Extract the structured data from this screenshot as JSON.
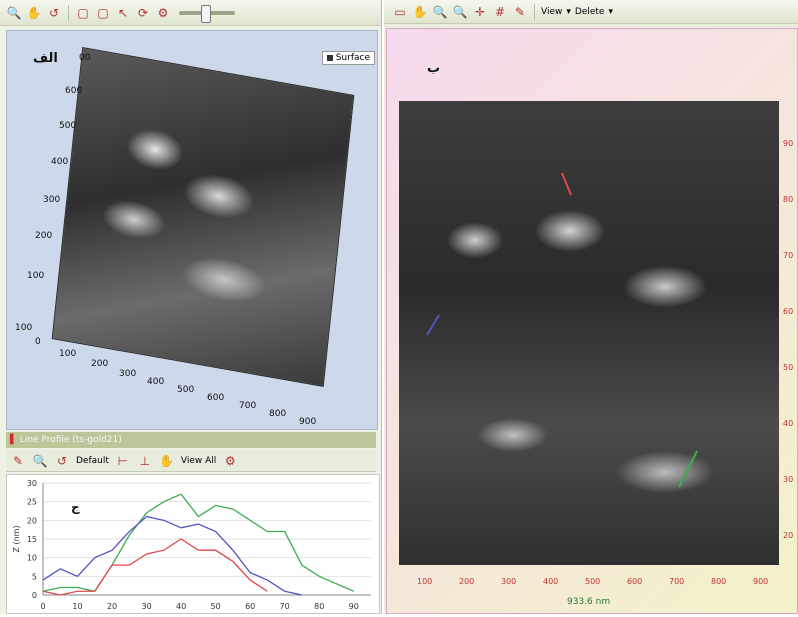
{
  "left": {
    "toolbar": {
      "icons": [
        "zoom-icon",
        "hand-icon",
        "reset-icon",
        "frame-icon",
        "frame2-icon",
        "pointer-icon",
        "rotate-icon",
        "options-icon",
        "slider-icon"
      ]
    },
    "view3d": {
      "overlay_label": "الف",
      "legend_label": "Surface",
      "y_ticks": [
        "600",
        "500",
        "400",
        "300",
        "200",
        "100",
        "100"
      ],
      "x_ticks": [
        "0",
        "100",
        "200",
        "300",
        "400",
        "500",
        "600",
        "700",
        "800",
        "900"
      ],
      "top_tick": "00"
    },
    "profile": {
      "title": "Line Profile (ts-gold21)",
      "toolbar": {
        "default_label": "Default",
        "viewall_label": "View All"
      }
    }
  },
  "right": {
    "toolbar": {
      "view_label": "View",
      "delete_label": "Delete"
    },
    "overlay_label": "ب",
    "x_ticks": [
      "100",
      "200",
      "300",
      "400",
      "500",
      "600",
      "700",
      "800",
      "900"
    ],
    "y_ticks": [
      "90",
      "80",
      "70",
      "60",
      "50",
      "40",
      "30",
      "20"
    ],
    "scale_label": "933.6 nm"
  },
  "chart_data": {
    "type": "line",
    "overlay_label": "ج",
    "ylabel": "Z (nm)",
    "x_ticks": [
      "0",
      "10",
      "20",
      "30",
      "40",
      "50",
      "60",
      "70",
      "80",
      "90"
    ],
    "y_ticks": [
      "0",
      "5",
      "10",
      "15",
      "20",
      "25",
      "30"
    ],
    "xlim": [
      0,
      95
    ],
    "ylim": [
      0,
      30
    ],
    "series": [
      {
        "color": "#3cae4f",
        "x": [
          0,
          5,
          10,
          15,
          20,
          25,
          30,
          35,
          40,
          45,
          50,
          55,
          60,
          65,
          70,
          75,
          80,
          85,
          90
        ],
        "y": [
          1,
          2,
          2,
          1,
          8,
          16,
          22,
          25,
          27,
          21,
          24,
          23,
          20,
          17,
          17,
          8,
          5,
          3,
          1
        ]
      },
      {
        "color": "#5353c7",
        "x": [
          0,
          5,
          10,
          15,
          20,
          25,
          30,
          35,
          40,
          45,
          50,
          55,
          60,
          65,
          70,
          75
        ],
        "y": [
          4,
          7,
          5,
          10,
          12,
          17,
          21,
          20,
          18,
          19,
          17,
          12,
          6,
          4,
          1,
          0
        ]
      },
      {
        "color": "#e0474b",
        "x": [
          0,
          5,
          10,
          15,
          20,
          25,
          30,
          35,
          40,
          45,
          50,
          55,
          60,
          65
        ],
        "y": [
          1,
          0,
          1,
          1,
          8,
          8,
          11,
          12,
          15,
          12,
          12,
          9,
          4,
          1
        ]
      }
    ]
  },
  "colors": {
    "frame_bg": "#f3f3c9",
    "axis_red": "#c03030",
    "scale_green": "#1f7a2f"
  }
}
